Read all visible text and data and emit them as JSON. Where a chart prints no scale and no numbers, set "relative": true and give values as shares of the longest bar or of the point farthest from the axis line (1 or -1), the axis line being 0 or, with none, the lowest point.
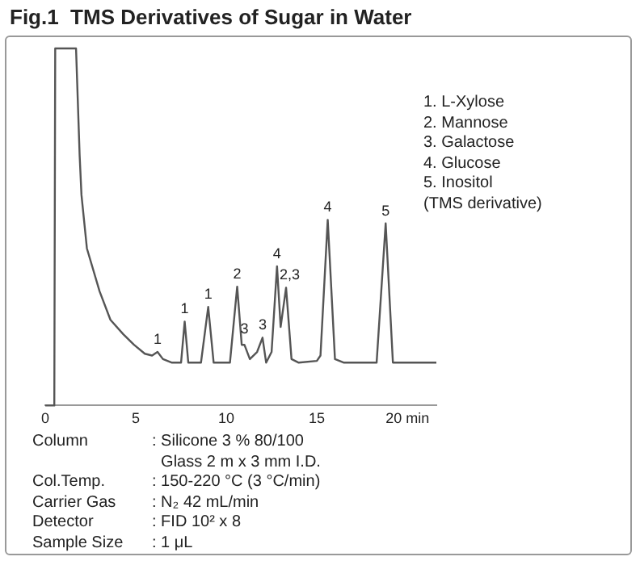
{
  "chart_data": {
    "type": "line",
    "title": "Fig.1  TMS Derivatives of Sugar in Water",
    "relative": true,
    "marker": "none",
    "grid": false,
    "x": [
      0,
      0.5,
      0.55,
      1.7,
      1.9,
      2.0,
      2.3,
      3.0,
      3.6,
      4.3,
      4.9,
      5.5,
      5.9,
      6.2,
      6.5,
      7.0,
      7.5,
      7.7,
      7.9,
      8.6,
      9.0,
      9.3,
      10.2,
      10.6,
      10.85,
      11.0,
      11.3,
      11.7,
      12.0,
      12.2,
      12.5,
      12.8,
      13.0,
      13.3,
      13.6,
      14.0,
      15.0,
      15.2,
      15.6,
      16.0,
      16.5,
      18.3,
      18.8,
      19.2,
      21.6
    ],
    "series": [
      {
        "color": "#555555",
        "values": [
          0,
          0,
          1,
          1,
          0.7,
          0.59,
          0.44,
          0.32,
          0.24,
          0.2,
          0.17,
          0.145,
          0.14,
          0.15,
          0.13,
          0.12,
          0.12,
          0.235,
          0.12,
          0.12,
          0.276,
          0.12,
          0.12,
          0.333,
          0.17,
          0.17,
          0.13,
          0.15,
          0.19,
          0.12,
          0.15,
          0.39,
          0.22,
          0.33,
          0.13,
          0.12,
          0.125,
          0.14,
          0.52,
          0.13,
          0.12,
          0.12,
          0.51,
          0.12,
          0.12
        ]
      }
    ],
    "xlim": [
      0,
      21.6
    ],
    "xticks": [
      0,
      5,
      10,
      15,
      {
        "value": 20,
        "label": "20 min"
      }
    ],
    "annotations": [
      {
        "text": "1",
        "x": 6.2,
        "y": 0.15
      },
      {
        "text": "1",
        "x": 7.7,
        "y": 0.235
      },
      {
        "text": "1",
        "x": 9.0,
        "y": 0.276
      },
      {
        "text": "2",
        "x": 10.6,
        "y": 0.333
      },
      {
        "text": "3",
        "x": 11.0,
        "y": 0.18
      },
      {
        "text": "3",
        "x": 12.0,
        "y": 0.19
      },
      {
        "text": "4",
        "x": 12.8,
        "y": 0.39
      },
      {
        "text": "2,3",
        "x": 13.5,
        "y": 0.33
      },
      {
        "text": "4",
        "x": 15.6,
        "y": 0.52
      },
      {
        "text": "5",
        "x": 18.8,
        "y": 0.51
      },
      "1. L-Xylose",
      "2. Mannose",
      "3. Galactose",
      "4. Glucose",
      "5. Inositol",
      "(TMS derivative)",
      "Column : Silicone 3 % 80/100",
      "Glass 2 m x 3 mm I.D.",
      "Col.Temp. : 150-220 °C (3 °C/min)",
      "Carrier Gas : N₂ 42 mL/min",
      "Detector : FID 10² x 8",
      "Sample Size : 1 μL"
    ]
  }
}
